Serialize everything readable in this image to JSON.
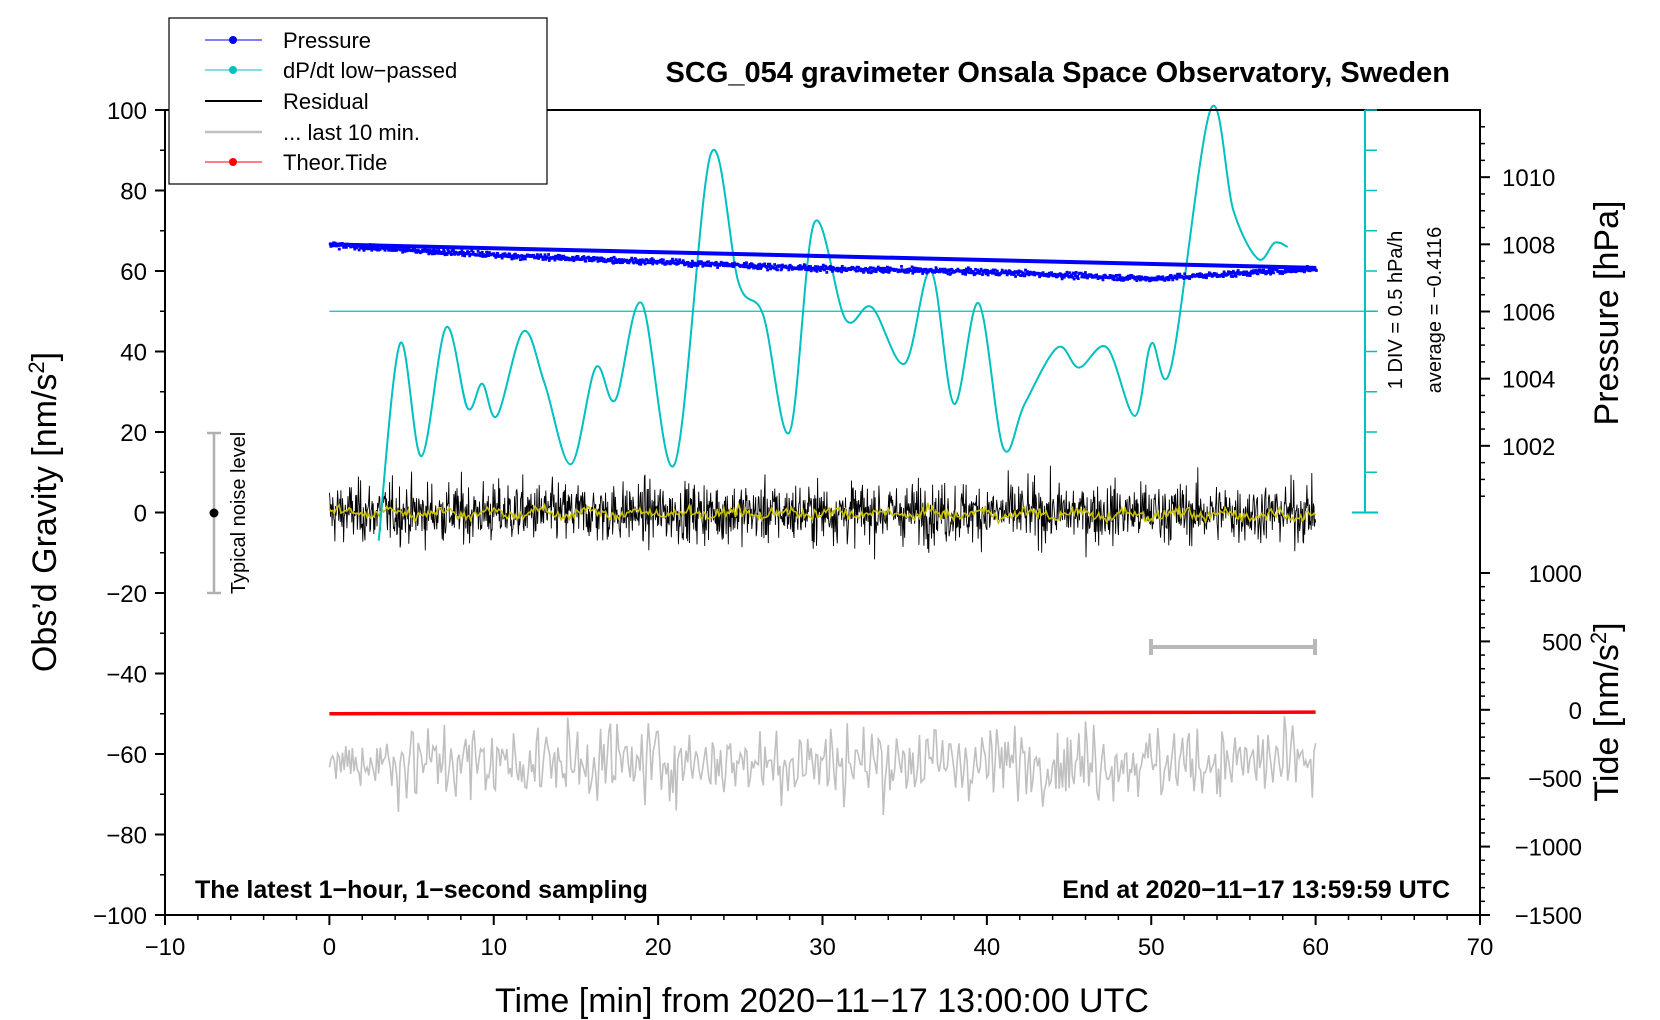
{
  "chart_data": {
    "type": "line",
    "title": "SCG_054 gravimeter Onsala Space Observatory, Sweden",
    "xlabel": "Time [min] from 2020−11−17 13:00:00 UTC",
    "ylabel": "Obs’d Gravity [nm/s²]",
    "ylabel_main": "Obs’d Gravity [nm/s",
    "ylabel_sup": "2",
    "ylabel_end": "]",
    "xlim": [
      -10,
      70
    ],
    "ylim": [
      -100,
      100
    ],
    "x_ticks": [
      -10,
      0,
      10,
      20,
      30,
      40,
      50,
      60,
      70
    ],
    "x_tick_labels": [
      "−10",
      "0",
      "10",
      "20",
      "30",
      "40",
      "50",
      "60",
      "70"
    ],
    "y_ticks": [
      -100,
      -80,
      -60,
      -40,
      -20,
      0,
      20,
      40,
      60,
      80,
      100
    ],
    "y_tick_labels": [
      "−100",
      "−80",
      "−60",
      "−40",
      "−20",
      "0",
      "20",
      "40",
      "60",
      "80",
      "100"
    ],
    "pressure_axis": {
      "label": "Pressure [hPa]",
      "ticks": [
        1002,
        1004,
        1006,
        1008,
        1010
      ],
      "tick_labels": [
        "1002",
        "1004",
        "1006",
        "1008",
        "1010"
      ],
      "range": [
        1000,
        1012
      ]
    },
    "tide_axis": {
      "label": "Tide [nm/s²]",
      "label_main": "Tide [nm/s",
      "label_sup": "2",
      "label_end": "]",
      "ticks": [
        -1500,
        -1000,
        -500,
        0,
        500,
        1000
      ],
      "tick_labels": [
        "−1500",
        "−1000",
        "−500",
        "0",
        "500",
        "1000"
      ],
      "range": [
        -1500,
        1000
      ]
    },
    "legend": [
      {
        "name": "Pressure",
        "color": "#0000ff",
        "marker": "dot"
      },
      {
        "name": "dP/dt low−passed",
        "color": "#00c0c0",
        "marker": "dot"
      },
      {
        "name": "Residual",
        "color": "#000000",
        "marker": "line"
      },
      {
        "name": "... last 10 min.",
        "color": "#c0c0c0",
        "marker": "line"
      },
      {
        "name": "Theor.Tide",
        "color": "#ff0000",
        "marker": "dot"
      }
    ],
    "series": [
      {
        "name": "Pressure",
        "units": "hPa",
        "x": [
          0,
          10,
          20,
          30,
          40,
          50,
          60
        ],
        "values": [
          1008.0,
          1007.7,
          1007.5,
          1007.3,
          1007.2,
          1007.0,
          1007.3
        ]
      },
      {
        "name": "dP/dt low-passed",
        "units": "nm/s² (scaled, 1 DIV = 0.5 hPa/h)",
        "x": [
          3.0,
          4.3,
          5.6,
          7.1,
          8.4,
          9.3,
          10.2,
          11.8,
          13.1,
          14.7,
          16.2,
          17.4,
          19.0,
          21.0,
          23.2,
          24.9,
          26.4,
          28.0,
          29.5,
          31.4,
          33.0,
          35.0,
          36.6,
          38.0,
          39.5,
          41.0,
          42.3,
          44.3,
          45.6,
          47.3,
          49.0,
          50.0,
          51.2,
          53.6,
          55.0,
          56.5,
          57.5,
          58.3
        ],
        "values": [
          -7,
          42,
          14,
          46,
          26,
          32,
          24,
          45,
          32,
          12,
          36,
          28,
          52,
          12,
          89,
          57,
          49,
          20,
          72,
          48,
          51,
          37,
          60,
          27,
          52,
          16,
          27,
          41,
          36,
          41,
          24,
          42,
          36,
          100,
          75,
          63,
          67,
          66
        ]
      },
      {
        "name": "Residual",
        "units": "nm/s²",
        "x": [
          0,
          60
        ],
        "values": [
          0,
          0
        ],
        "spread": [
          -19,
          15
        ]
      },
      {
        "name": "Residual (yellow smoothed)",
        "units": "nm/s²",
        "x": [
          0,
          60
        ],
        "values": [
          0,
          0
        ]
      },
      {
        "name": "... last 10 min.",
        "units": "nm/s² (displayed around −62)",
        "x": [
          0,
          60
        ],
        "values": [
          -62,
          -62
        ]
      },
      {
        "name": "Theor.Tide",
        "units": "nm/s² (tide axis)",
        "x": [
          0,
          60
        ],
        "values": [
          -50,
          -49.6
        ]
      }
    ],
    "pressure_ref_line": 50,
    "scale_bar": {
      "label": "1 DIV = 0.5 hPa/h",
      "average_label": "average = −0.4116"
    },
    "noise_bar": {
      "label": "Typical noise level",
      "x": -7,
      "y": 0,
      "range": [
        -20,
        20
      ]
    },
    "last10_bar": {
      "x": [
        50,
        60
      ],
      "y": -33
    },
    "notes": {
      "left": "The latest 1−hour, 1−second sampling",
      "right": "End at 2020−11−17 13:59:59 UTC"
    }
  }
}
